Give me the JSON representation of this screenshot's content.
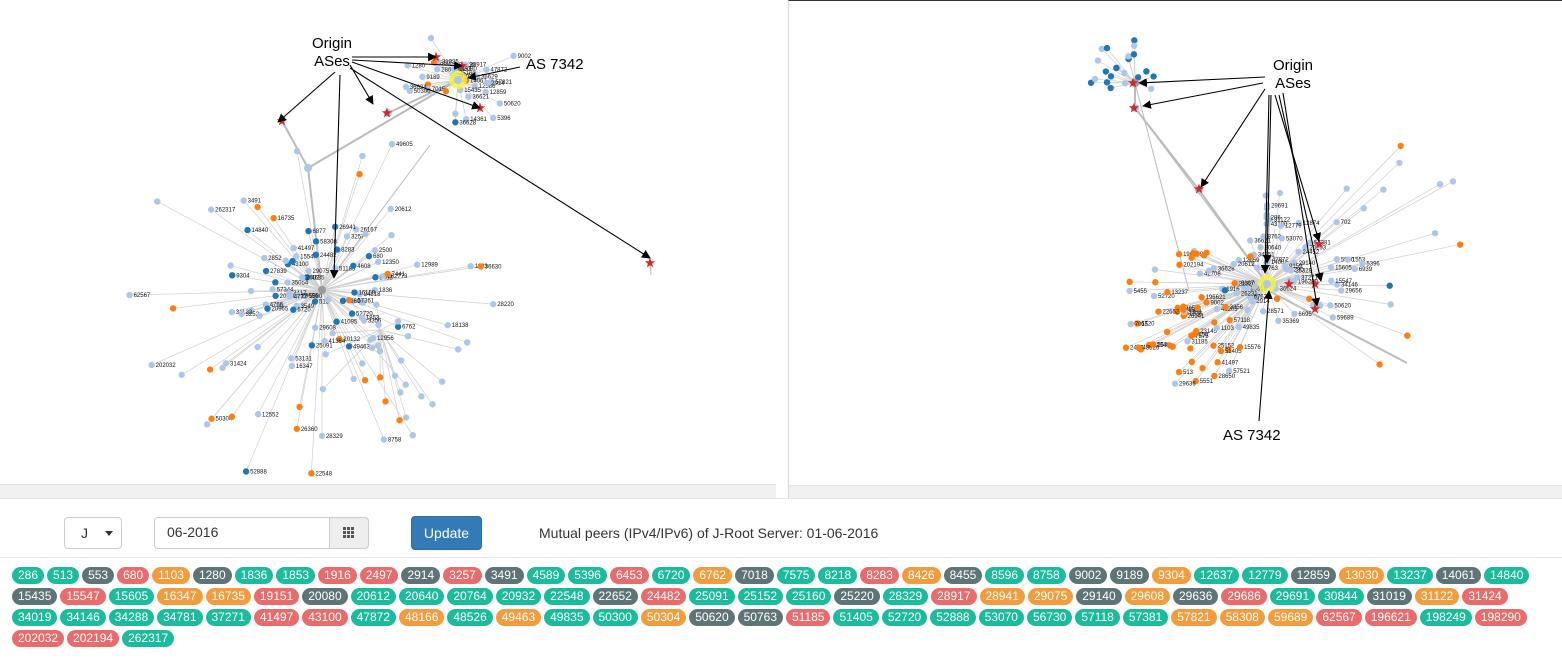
{
  "left_graph": {
    "annotations": {
      "origin_line1": "Origin",
      "origin_line2": "ASes",
      "as_label": "AS 7342"
    },
    "node_labels": [
      "9189",
      "6695",
      "20080",
      "56730",
      "12859",
      "7015",
      "5396",
      "286",
      "14361",
      "31025",
      "12586",
      "57821",
      "47872",
      "50300",
      "15435",
      "9002",
      "25160",
      "36621",
      "36628",
      "36624",
      "50620",
      "36629",
      "14061",
      "1280",
      "2497",
      "2914",
      "28917",
      "6453",
      "20640",
      "6877",
      "6762",
      "41095",
      "41497",
      "31122",
      "5580",
      "15547",
      "57344",
      "29075",
      "20132",
      "8468",
      "49463",
      "16347",
      "51185",
      "680",
      "3417",
      "513",
      "4766",
      "3549",
      "12956",
      "35054",
      "58308",
      "8283",
      "29608",
      "12350",
      "25091",
      "262773",
      "27839",
      "26167",
      "43100",
      "3252",
      "4608",
      "3257",
      "29686",
      "41364",
      "2852",
      "1836",
      "4635",
      "24218",
      "2602",
      "16150",
      "57361",
      "9304",
      "7660",
      "52720",
      "53131",
      "2500",
      "4777",
      "3356",
      "26941",
      "1853",
      "6720",
      "24482",
      "20965",
      "202032",
      "1103",
      "12552",
      "20612",
      "8758",
      "50304",
      "31424",
      "28220",
      "22548",
      "262317",
      "14840",
      "52888",
      "28329",
      "26360",
      "18138",
      "12989",
      "16735",
      "62567",
      "36630",
      "3491",
      "7441",
      "49605"
    ]
  },
  "right_graph": {
    "annotations": {
      "origin_line1": "Origin",
      "origin_line2": "ASes",
      "as_label": "AS 7342"
    },
    "node_labels": [
      "43100",
      "59689",
      "50620",
      "196290",
      "48203",
      "36628",
      "36616",
      "1280",
      "2914",
      "14061",
      "31122",
      "36624",
      "6762",
      "57381",
      "286",
      "42708",
      "29140",
      "702",
      "12874",
      "29656",
      "36621",
      "15605",
      "9159",
      "20640",
      "6695",
      "12779",
      "12659",
      "50763",
      "1916",
      "28571",
      "34751",
      "26231",
      "20612",
      "49835",
      "5920",
      "47872",
      "20203",
      "25329",
      "37271",
      "8763",
      "34146",
      "6939",
      "24452",
      "15547",
      "29691",
      "35369",
      "1553",
      "6667",
      "53070",
      "5396",
      "1836",
      "7575",
      "202194",
      "22548",
      "21320",
      "57118",
      "57521",
      "5551",
      "41497",
      "51405",
      "196249",
      "52720",
      "6720",
      "513",
      "3356",
      "650",
      "26941",
      "3303",
      "23145",
      "2497",
      "25152",
      "15576",
      "196621",
      "19151",
      "13237",
      "48526",
      "5455",
      "22652",
      "1103",
      "31185",
      "4589",
      "28650",
      "29636",
      "9002",
      "7015",
      "553"
    ]
  },
  "controls": {
    "server_select": "J",
    "date_input": "06-2016",
    "update_label": "Update",
    "caption": "Mutual peers (IPv4/IPv6) of J-Root Server: 01-06-2016"
  },
  "colors": {
    "green": "#1abc9c",
    "gray": "#5f7476",
    "red": "#e96b6b",
    "orange": "#f39c3d",
    "node_light": "#aec7e8",
    "node_blue": "#1f77b4",
    "node_orange": "#ff7f0e",
    "button_blue": "#337ab7"
  },
  "peer_badges": [
    {
      "label": "286",
      "color": "g"
    },
    {
      "label": "513",
      "color": "g"
    },
    {
      "label": "553",
      "color": "d"
    },
    {
      "label": "680",
      "color": "r"
    },
    {
      "label": "1103",
      "color": "o"
    },
    {
      "label": "1280",
      "color": "d"
    },
    {
      "label": "1836",
      "color": "g"
    },
    {
      "label": "1853",
      "color": "g"
    },
    {
      "label": "1916",
      "color": "r"
    },
    {
      "label": "2497",
      "color": "r"
    },
    {
      "label": "2914",
      "color": "d"
    },
    {
      "label": "3257",
      "color": "r"
    },
    {
      "label": "3491",
      "color": "d"
    },
    {
      "label": "4589",
      "color": "g"
    },
    {
      "label": "5396",
      "color": "g"
    },
    {
      "label": "6453",
      "color": "r"
    },
    {
      "label": "6720",
      "color": "g"
    },
    {
      "label": "6762",
      "color": "o"
    },
    {
      "label": "7018",
      "color": "d"
    },
    {
      "label": "7575",
      "color": "g"
    },
    {
      "label": "8218",
      "color": "g"
    },
    {
      "label": "8283",
      "color": "r"
    },
    {
      "label": "8426",
      "color": "o"
    },
    {
      "label": "8455",
      "color": "d"
    },
    {
      "label": "8596",
      "color": "g"
    },
    {
      "label": "8758",
      "color": "g"
    },
    {
      "label": "9002",
      "color": "d"
    },
    {
      "label": "9189",
      "color": "d"
    },
    {
      "label": "9304",
      "color": "o"
    },
    {
      "label": "12637",
      "color": "g"
    },
    {
      "label": "12779",
      "color": "g"
    },
    {
      "label": "12859",
      "color": "d"
    },
    {
      "label": "13030",
      "color": "o"
    },
    {
      "label": "13237",
      "color": "g"
    },
    {
      "label": "14061",
      "color": "d"
    },
    {
      "label": "14840",
      "color": "g"
    },
    {
      "label": "15435",
      "color": "d"
    },
    {
      "label": "15547",
      "color": "r"
    },
    {
      "label": "15605",
      "color": "g"
    },
    {
      "label": "16347",
      "color": "o"
    },
    {
      "label": "16735",
      "color": "o"
    },
    {
      "label": "19151",
      "color": "r"
    },
    {
      "label": "20080",
      "color": "d"
    },
    {
      "label": "20612",
      "color": "g"
    },
    {
      "label": "20640",
      "color": "g"
    },
    {
      "label": "20764",
      "color": "g"
    },
    {
      "label": "20932",
      "color": "g"
    },
    {
      "label": "22548",
      "color": "g"
    },
    {
      "label": "22652",
      "color": "d"
    },
    {
      "label": "24482",
      "color": "r"
    },
    {
      "label": "25091",
      "color": "g"
    },
    {
      "label": "25152",
      "color": "g"
    },
    {
      "label": "25160",
      "color": "g"
    },
    {
      "label": "25220",
      "color": "d"
    },
    {
      "label": "28329",
      "color": "g"
    },
    {
      "label": "28917",
      "color": "r"
    },
    {
      "label": "28941",
      "color": "o"
    },
    {
      "label": "29075",
      "color": "o"
    },
    {
      "label": "29140",
      "color": "d"
    },
    {
      "label": "29608",
      "color": "o"
    },
    {
      "label": "29636",
      "color": "d"
    },
    {
      "label": "29686",
      "color": "r"
    },
    {
      "label": "29691",
      "color": "g"
    },
    {
      "label": "30844",
      "color": "g"
    },
    {
      "label": "31019",
      "color": "d"
    },
    {
      "label": "31122",
      "color": "o"
    },
    {
      "label": "31424",
      "color": "r"
    },
    {
      "label": "34019",
      "color": "g"
    },
    {
      "label": "34146",
      "color": "g"
    },
    {
      "label": "34288",
      "color": "g"
    },
    {
      "label": "34781",
      "color": "g"
    },
    {
      "label": "37271",
      "color": "g"
    },
    {
      "label": "41497",
      "color": "r"
    },
    {
      "label": "43100",
      "color": "r"
    },
    {
      "label": "47872",
      "color": "g"
    },
    {
      "label": "48166",
      "color": "o"
    },
    {
      "label": "48526",
      "color": "g"
    },
    {
      "label": "49463",
      "color": "o"
    },
    {
      "label": "49835",
      "color": "g"
    },
    {
      "label": "50300",
      "color": "g"
    },
    {
      "label": "50304",
      "color": "o"
    },
    {
      "label": "50620",
      "color": "d"
    },
    {
      "label": "50763",
      "color": "d"
    },
    {
      "label": "51185",
      "color": "r"
    },
    {
      "label": "51405",
      "color": "g"
    },
    {
      "label": "52720",
      "color": "g"
    },
    {
      "label": "52888",
      "color": "g"
    },
    {
      "label": "53070",
      "color": "g"
    },
    {
      "label": "56730",
      "color": "g"
    },
    {
      "label": "57118",
      "color": "g"
    },
    {
      "label": "57381",
      "color": "g"
    },
    {
      "label": "57821",
      "color": "o"
    },
    {
      "label": "58308",
      "color": "o"
    },
    {
      "label": "59689",
      "color": "o"
    },
    {
      "label": "62567",
      "color": "r"
    },
    {
      "label": "196621",
      "color": "r"
    },
    {
      "label": "198249",
      "color": "g"
    },
    {
      "label": "198290",
      "color": "r"
    },
    {
      "label": "202032",
      "color": "r"
    },
    {
      "label": "202194",
      "color": "r"
    },
    {
      "label": "262317",
      "color": "g"
    }
  ]
}
